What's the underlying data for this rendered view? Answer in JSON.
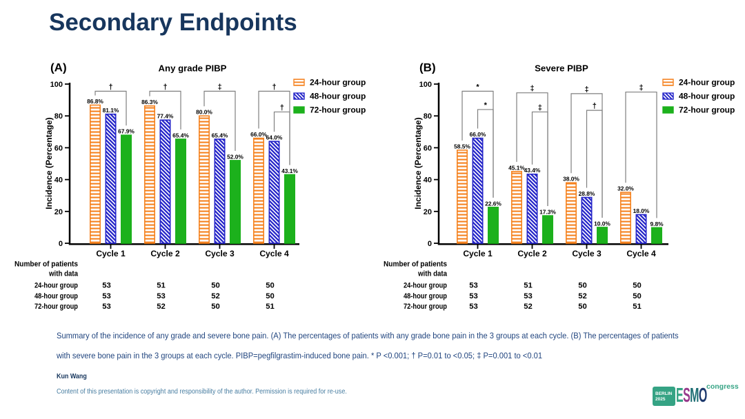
{
  "title": "Secondary Endpoints",
  "caption": "Summary of the incidence of any grade and severe bone pain. (A) The percentages of patients with any grade bone pain in the 3 groups at each cycle. (B) The percentages of patients with severe bone pain in the 3 groups at each cycle. PIBP=pegfilgrastim-induced bone pain. * P <0.001; † P=0.01 to <0.05; ‡ P=0.001 to <0.01",
  "footer": {
    "author": "Kun Wang",
    "copyright": "Content of this presentation is copyright and responsibility of the author. Permission is required for re-use."
  },
  "logo": {
    "badge_line1": "BERLIN",
    "badge_line2": "2025",
    "brand": "ESMO",
    "suffix": "congress",
    "letter_colors": [
      "#35a384",
      "#983a8c",
      "#1e6e74",
      "#1e3a6e"
    ]
  },
  "colors": {
    "orange": "#F5821F",
    "blue": "#2626C9",
    "green": "#1CB11C",
    "axis": "#000000",
    "bracket": "#7f7f7f",
    "caption_text": "#20447e"
  },
  "chart_data": [
    {
      "type": "bar",
      "panel_label": "(A)",
      "title": "Any grade PIBP",
      "ylabel": "Incidence (Percentage)",
      "ylim": [
        0,
        100
      ],
      "yticks": [
        0,
        20,
        40,
        60,
        80,
        100
      ],
      "categories": [
        "Cycle 1",
        "Cycle 2",
        "Cycle 3",
        "Cycle 4"
      ],
      "series": [
        {
          "name": "24-hour group",
          "values": [
            86.8,
            86.3,
            80.0,
            66.0
          ]
        },
        {
          "name": "48-hour group",
          "values": [
            81.1,
            77.4,
            65.4,
            64.0
          ]
        },
        {
          "name": "72-hour group",
          "values": [
            67.9,
            65.4,
            52.0,
            43.1
          ]
        }
      ],
      "significance": [
        {
          "category": 0,
          "from": 0,
          "to": 2,
          "level": 95.5,
          "symbol": "†"
        },
        {
          "category": 1,
          "from": 0,
          "to": 2,
          "level": 95.5,
          "symbol": "†"
        },
        {
          "category": 2,
          "from": 0,
          "to": 2,
          "level": 95.5,
          "symbol": "‡"
        },
        {
          "category": 3,
          "from": 0,
          "to": 2,
          "level": 95.5,
          "symbol": "†"
        },
        {
          "category": 3,
          "from": 1,
          "to": 2,
          "level": 82.5,
          "symbol": "†"
        }
      ],
      "patients_table": {
        "header": [
          "Number of patients",
          "with data"
        ],
        "rows": [
          {
            "label": "24-hour group",
            "values": [
              "53",
              "51",
              "50",
              "50"
            ]
          },
          {
            "label": "48-hour group",
            "values": [
              "53",
              "53",
              "52",
              "50"
            ]
          },
          {
            "label": "72-hour group",
            "values": [
              "53",
              "52",
              "50",
              "51"
            ]
          }
        ]
      }
    },
    {
      "type": "bar",
      "panel_label": "(B)",
      "title": "Severe PIBP",
      "ylabel": "Incidence (Percentage)",
      "ylim": [
        0,
        100
      ],
      "yticks": [
        0,
        20,
        40,
        60,
        80,
        100
      ],
      "categories": [
        "Cycle 1",
        "Cycle 2",
        "Cycle 3",
        "Cycle 4"
      ],
      "series": [
        {
          "name": "24-hour group",
          "values": [
            58.5,
            45.1,
            38.0,
            32.0
          ]
        },
        {
          "name": "48-hour group",
          "values": [
            66.0,
            43.4,
            28.8,
            18.0
          ]
        },
        {
          "name": "72-hour group",
          "values": [
            22.6,
            17.3,
            10.0,
            9.8
          ]
        }
      ],
      "significance": [
        {
          "category": 0,
          "from": 0,
          "to": 2,
          "level": 95.5,
          "symbol": "*"
        },
        {
          "category": 0,
          "from": 1,
          "to": 2,
          "level": 84.0,
          "symbol": "*"
        },
        {
          "category": 1,
          "from": 0,
          "to": 2,
          "level": 94.5,
          "symbol": "‡"
        },
        {
          "category": 1,
          "from": 1,
          "to": 2,
          "level": 82.5,
          "symbol": "‡"
        },
        {
          "category": 2,
          "from": 0,
          "to": 2,
          "level": 94.0,
          "symbol": "‡"
        },
        {
          "category": 2,
          "from": 1,
          "to": 2,
          "level": 83.5,
          "symbol": "†"
        },
        {
          "category": 3,
          "from": 0,
          "to": 2,
          "level": 95.0,
          "symbol": "‡"
        }
      ],
      "patients_table": {
        "header": [
          "Number of patients",
          "with data"
        ],
        "rows": [
          {
            "label": "24-hour group",
            "values": [
              "53",
              "51",
              "50",
              "50"
            ]
          },
          {
            "label": "48-hour group",
            "values": [
              "53",
              "53",
              "52",
              "50"
            ]
          },
          {
            "label": "72-hour group",
            "values": [
              "53",
              "52",
              "50",
              "51"
            ]
          }
        ]
      }
    }
  ]
}
